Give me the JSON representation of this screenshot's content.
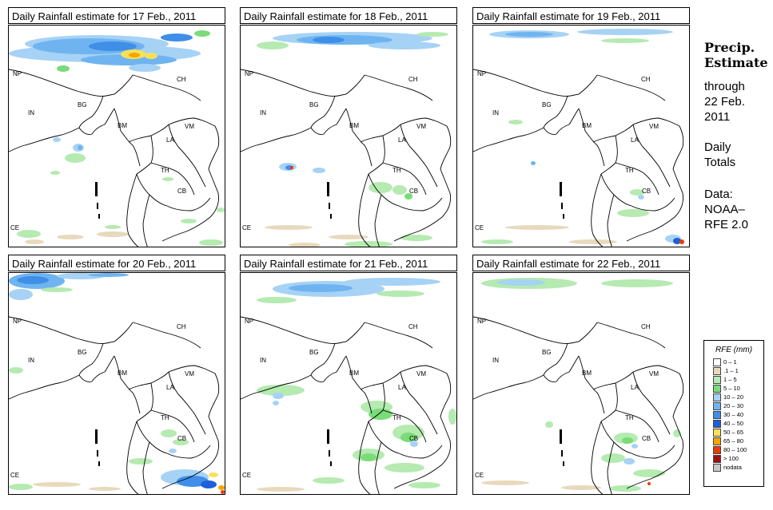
{
  "panels": [
    {
      "title": "Daily Rainfall estimate for  17 Feb., 2011",
      "rain": "p17"
    },
    {
      "title": "Daily Rainfall estimate for  18 Feb., 2011",
      "rain": "p18"
    },
    {
      "title": "Daily Rainfall estimate for  19 Feb., 2011",
      "rain": "p19"
    },
    {
      "title": "Daily Rainfall estimate for  20 Feb., 2011",
      "rain": "p20"
    },
    {
      "title": "Daily Rainfall estimate for  21 Feb., 2011",
      "rain": "p21"
    },
    {
      "title": "Daily Rainfall estimate for  22 Feb., 2011",
      "rain": "p22"
    }
  ],
  "country_labels": [
    "NP",
    "CH",
    "IN",
    "BG",
    "BM",
    "VM",
    "LA",
    "TH",
    "CB",
    "CE"
  ],
  "side": {
    "heading_line1": "Precip.",
    "heading_line2": "Estimate",
    "through": "through",
    "date_line1": "22 Feb.",
    "date_line2": "2011",
    "daily_line1": "Daily",
    "daily_line2": "Totals",
    "data_line1": "Data:",
    "data_line2": "NOAA–",
    "data_line3": "RFE 2.0"
  },
  "legend": {
    "title": "RFE (mm)",
    "items": [
      {
        "label": "0 – 1",
        "color": "#ffffff"
      },
      {
        "label": ".1 – 1",
        "color": "#e8d9bd"
      },
      {
        "label": "1 – 5",
        "color": "#b5eab0"
      },
      {
        "label": "5 – 10",
        "color": "#79dc79"
      },
      {
        "label": "10 – 20",
        "color": "#a6d2f5"
      },
      {
        "label": "20 – 30",
        "color": "#6fb4f0"
      },
      {
        "label": "30 – 40",
        "color": "#3f8fe8"
      },
      {
        "label": "40 – 50",
        "color": "#1f5fd8"
      },
      {
        "label": "50 – 65",
        "color": "#f7e05a"
      },
      {
        "label": "65 – 80",
        "color": "#f7a500"
      },
      {
        "label": "80 – 100",
        "color": "#ee3a00"
      },
      {
        "label": "> 100",
        "color": "#a01010"
      },
      {
        "label": "nodata",
        "color": "#c8c8c8"
      }
    ]
  }
}
